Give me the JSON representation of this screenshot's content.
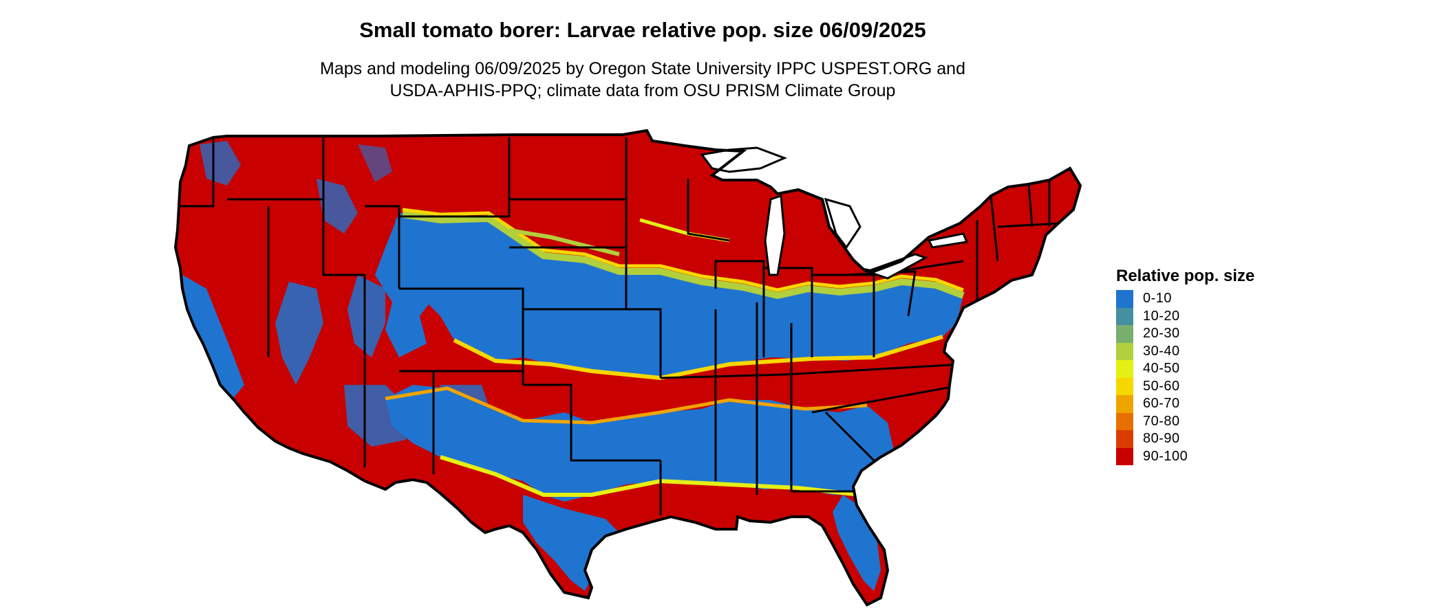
{
  "title": "Small tomato borer: Larvae relative pop. size 06/09/2025",
  "subtitle_line1": "Maps and modeling 06/09/2025 by Oregon State University IPPC USPEST.ORG and",
  "subtitle_line2": "USDA-APHIS-PPQ; climate data from OSU PRISM Climate Group",
  "legend": {
    "title": "Relative pop. size",
    "items": [
      {
        "label": "0-10",
        "color": "#1f74d0"
      },
      {
        "label": "10-20",
        "color": "#448fa0"
      },
      {
        "label": "20-30",
        "color": "#78ae6e"
      },
      {
        "label": "30-40",
        "color": "#b2cf3c"
      },
      {
        "label": "40-50",
        "color": "#e5ef14"
      },
      {
        "label": "50-60",
        "color": "#f7d700"
      },
      {
        "label": "60-70",
        "color": "#f0a400"
      },
      {
        "label": "70-80",
        "color": "#e87000"
      },
      {
        "label": "80-90",
        "color": "#db3c00"
      },
      {
        "label": "90-100",
        "color": "#c80000"
      }
    ]
  },
  "colors": {
    "low": "#1f74d0",
    "mid_low": "#b2cf3c",
    "mid": "#f7d700",
    "mid_high": "#e87000",
    "high": "#c80000",
    "border": "#000000"
  }
}
